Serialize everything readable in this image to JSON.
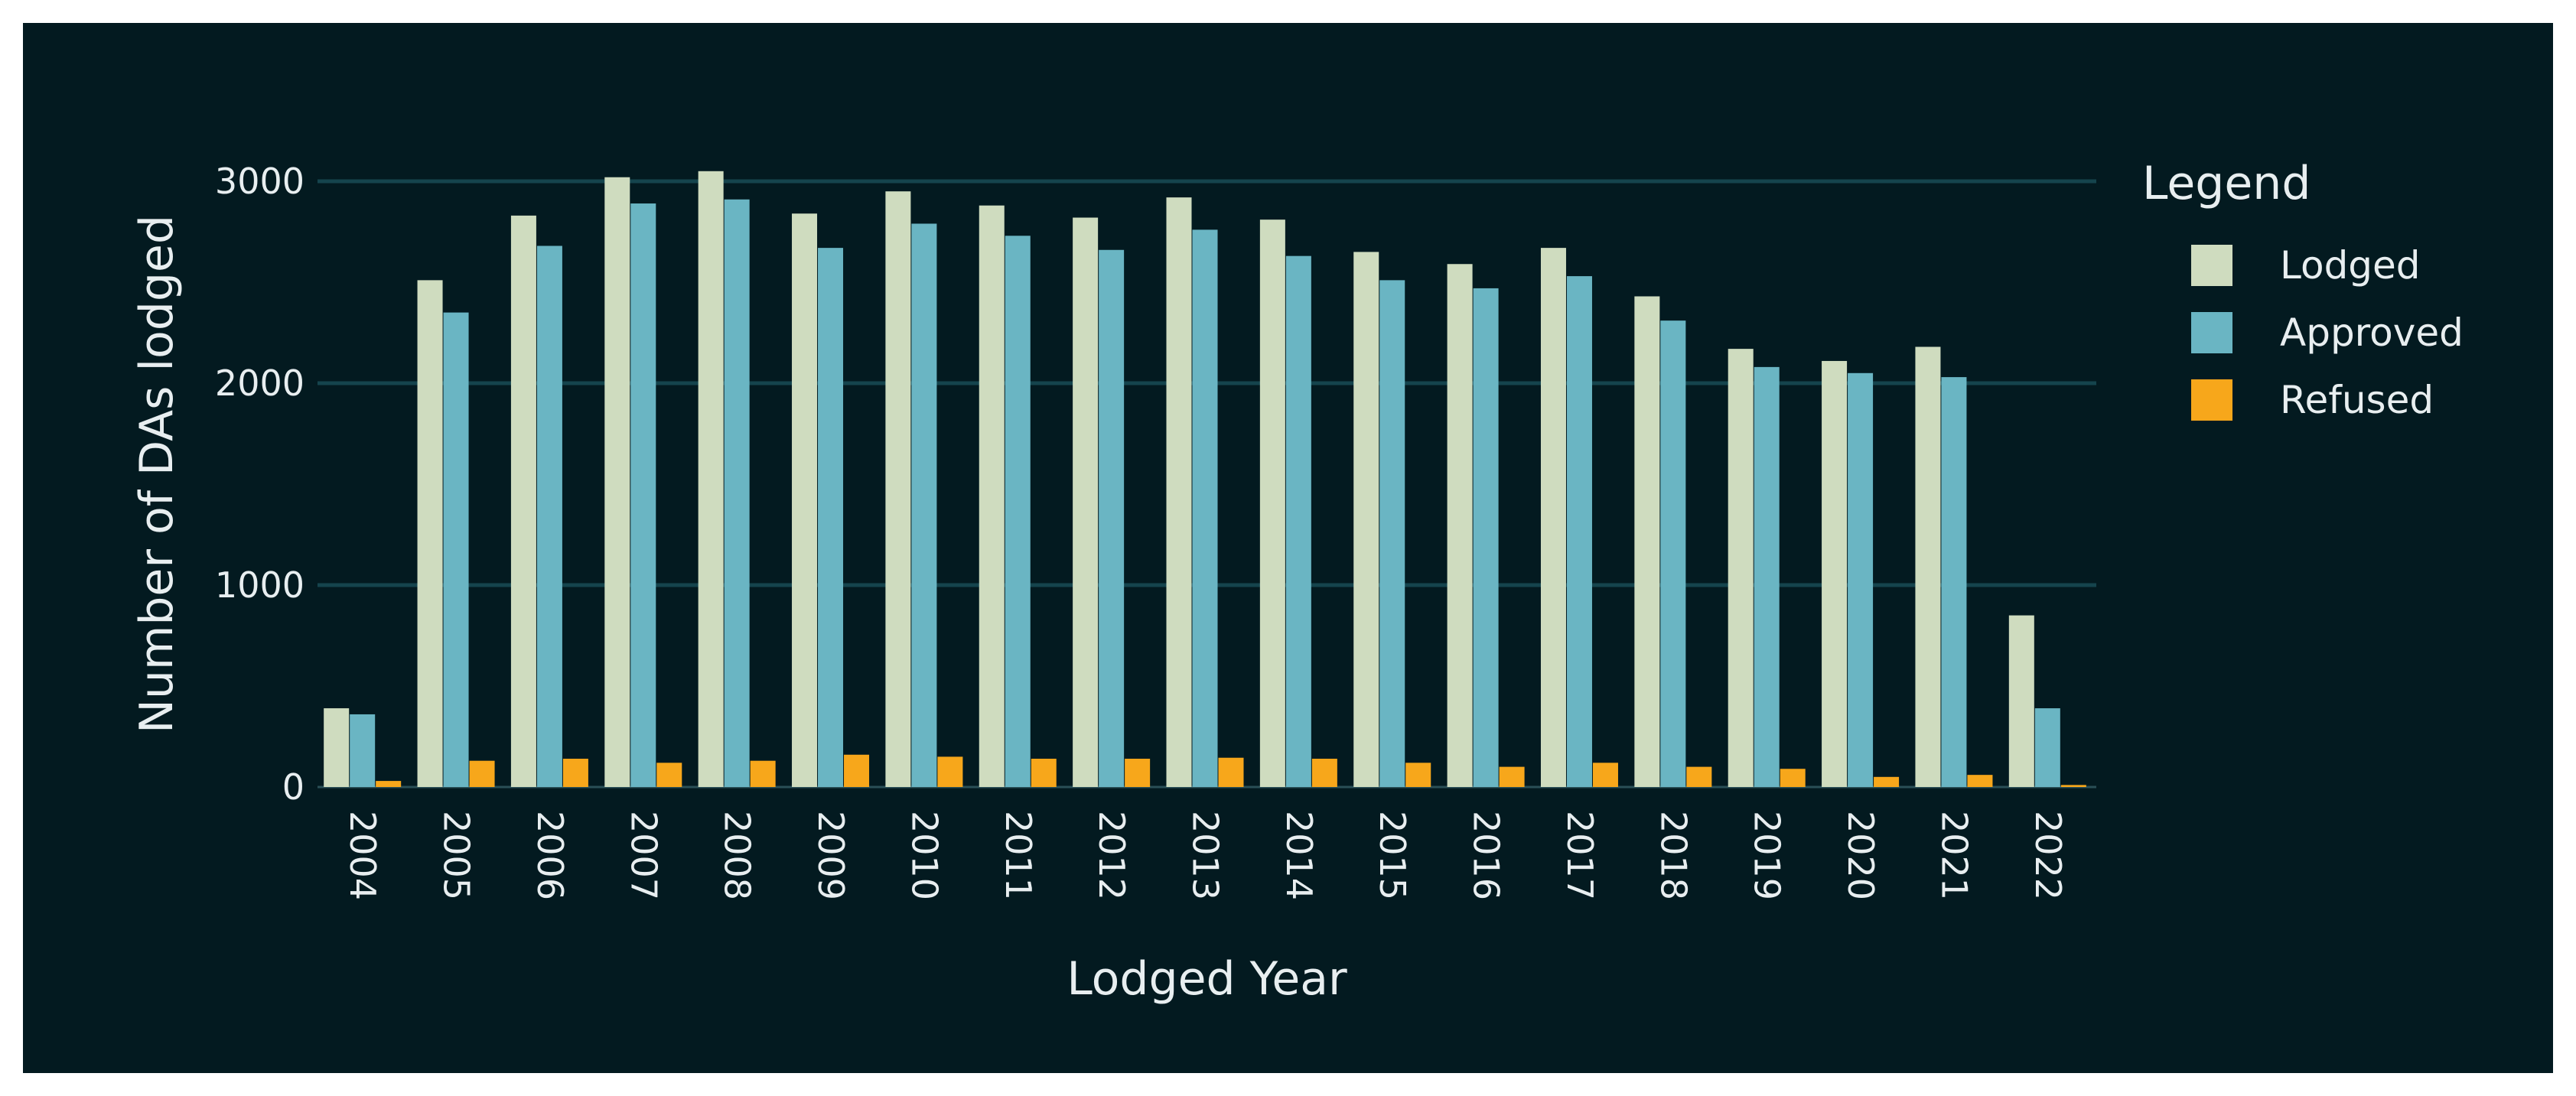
{
  "chart_data": {
    "type": "bar",
    "title": "",
    "xlabel": "Lodged Year",
    "ylabel": "Number of DAs lodged",
    "ylim": [
      0,
      3300
    ],
    "yticks": [
      0,
      1000,
      2000,
      3000
    ],
    "grid": true,
    "legend_title": "Legend",
    "legend_position": "right",
    "categories": [
      "2004",
      "2005",
      "2006",
      "2007",
      "2008",
      "2009",
      "2010",
      "2011",
      "2012",
      "2013",
      "2014",
      "2015",
      "2016",
      "2017",
      "2018",
      "2019",
      "2020",
      "2021",
      "2022"
    ],
    "series": [
      {
        "name": "Lodged",
        "color": "#cfdcbf",
        "values": [
          390,
          2510,
          2830,
          3020,
          3050,
          2840,
          2950,
          2880,
          2820,
          2920,
          2810,
          2650,
          2590,
          2670,
          2430,
          2170,
          2110,
          2180,
          850
        ]
      },
      {
        "name": "Approved",
        "color": "#6ab5c3",
        "values": [
          360,
          2350,
          2680,
          2890,
          2910,
          2670,
          2790,
          2730,
          2660,
          2760,
          2630,
          2510,
          2470,
          2530,
          2310,
          2080,
          2050,
          2030,
          390
        ]
      },
      {
        "name": "Refused",
        "color": "#f7a71b",
        "values": [
          30,
          130,
          140,
          120,
          130,
          160,
          150,
          140,
          140,
          145,
          140,
          120,
          100,
          120,
          100,
          90,
          50,
          60,
          10
        ]
      }
    ],
    "colors": {
      "background": "#031a20",
      "grid": "#15444d",
      "text": "#e8eef0"
    }
  }
}
